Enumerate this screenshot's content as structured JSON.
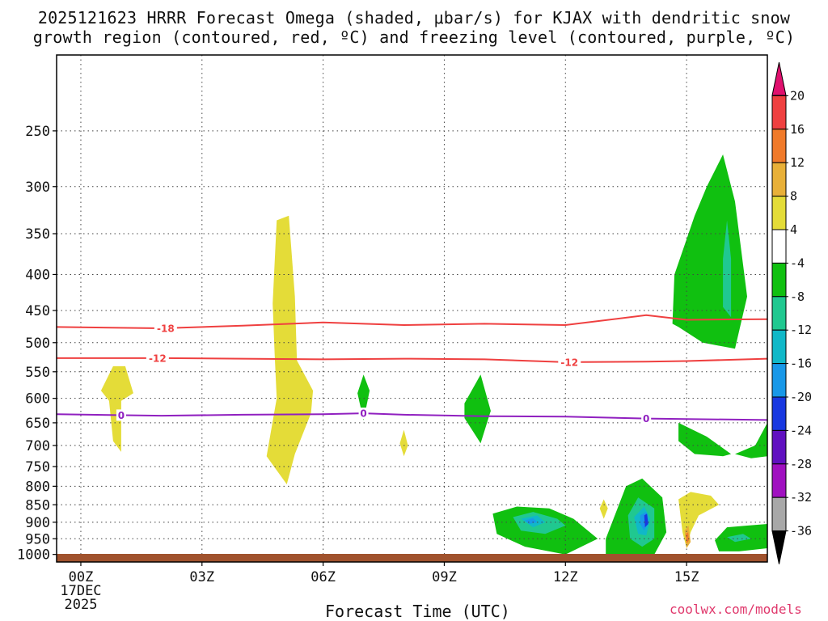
{
  "title": {
    "line1": "2025121623 HRRR Forecast Omega (shaded, μbar/s) for KJAX with dendritic snow",
    "line2": "growth region (contoured, red, ºC) and freezing level (contoured, purple, ºC)"
  },
  "credit": "coolwx.com/models",
  "chart_data": {
    "type": "heatmap",
    "xlabel": "Forecast Time (UTC)",
    "ylabel": "",
    "x_range_hours": [
      -0.6,
      17
    ],
    "y_range_hpa": [
      1025,
      195
    ],
    "y_scale": "log",
    "x_ticks": [
      {
        "hour": 0,
        "label": "00Z",
        "sublabels": [
          "17DEC",
          "2025"
        ]
      },
      {
        "hour": 3,
        "label": "03Z"
      },
      {
        "hour": 6,
        "label": "06Z"
      },
      {
        "hour": 9,
        "label": "09Z"
      },
      {
        "hour": 12,
        "label": "12Z"
      },
      {
        "hour": 15,
        "label": "15Z"
      }
    ],
    "y_ticks": [
      250,
      300,
      350,
      400,
      450,
      500,
      550,
      600,
      650,
      700,
      750,
      800,
      850,
      900,
      950,
      1000
    ],
    "grid": true,
    "colorbar": {
      "labels": [
        "20",
        "16",
        "12",
        "8",
        "4",
        "-4",
        "-8",
        "-12",
        "-16",
        "-20",
        "-24",
        "-28",
        "-32",
        "-36"
      ],
      "colors": [
        "#e0106e",
        "#ef4040",
        "#f07a2a",
        "#e8b038",
        "#e4dc38",
        "#ffffff",
        "#10c010",
        "#20c890",
        "#10b8c8",
        "#1898e8",
        "#1838e0",
        "#6010c0",
        "#a010c0",
        "#a8a8a8",
        "#000000"
      ]
    },
    "contours": [
      {
        "name": "-18",
        "color": "#ef4040",
        "points": [
          [
            -0.6,
            475
          ],
          [
            2,
            477
          ],
          [
            4,
            473
          ],
          [
            6,
            468
          ],
          [
            8,
            472
          ],
          [
            10,
            470
          ],
          [
            12,
            472
          ],
          [
            14,
            457
          ],
          [
            15,
            464
          ],
          [
            17,
            463
          ]
        ],
        "labels": [
          {
            "text": "-18",
            "x": 2.1
          }
        ]
      },
      {
        "name": "-12",
        "color": "#ef4040",
        "points": [
          [
            -0.6,
            526
          ],
          [
            2,
            526
          ],
          [
            4,
            527
          ],
          [
            6,
            528
          ],
          [
            8,
            527
          ],
          [
            10,
            528
          ],
          [
            12,
            533
          ],
          [
            14,
            532
          ],
          [
            15,
            531
          ],
          [
            17,
            527
          ]
        ],
        "labels": [
          {
            "text": "-12",
            "x": 1.9
          },
          {
            "text": "-12",
            "x": 12.1
          }
        ]
      },
      {
        "name": "0",
        "color": "#9020c0",
        "points": [
          [
            -0.6,
            632
          ],
          [
            2,
            635
          ],
          [
            4,
            633
          ],
          [
            6,
            632
          ],
          [
            7,
            630
          ],
          [
            8,
            633
          ],
          [
            10,
            636
          ],
          [
            12,
            637
          ],
          [
            14,
            641
          ],
          [
            17,
            644
          ]
        ],
        "labels": [
          {
            "text": "0",
            "x": 1.0
          },
          {
            "text": "0",
            "x": 7.0
          },
          {
            "text": "0",
            "x": 14.0
          }
        ]
      }
    ],
    "omega_regions": [
      {
        "value": 4,
        "color": "#e4dc38",
        "points": [
          [
            0.5,
            585
          ],
          [
            0.8,
            540
          ],
          [
            1.1,
            540
          ],
          [
            1.3,
            590
          ],
          [
            1.0,
            605
          ],
          [
            1.0,
            715
          ],
          [
            0.8,
            690
          ],
          [
            0.7,
            605
          ]
        ]
      },
      {
        "value": 4,
        "color": "#e4dc38",
        "points": [
          [
            4.75,
            440
          ],
          [
            4.85,
            335
          ],
          [
            5.15,
            330
          ],
          [
            5.3,
            430
          ],
          [
            5.35,
            530
          ],
          [
            5.75,
            585
          ],
          [
            5.7,
            630
          ],
          [
            5.3,
            720
          ],
          [
            5.1,
            795
          ],
          [
            4.6,
            725
          ],
          [
            4.85,
            600
          ],
          [
            4.8,
            520
          ]
        ]
      },
      {
        "value": -4,
        "color": "#10c010",
        "points": [
          [
            6.85,
            590
          ],
          [
            7.0,
            555
          ],
          [
            7.15,
            585
          ],
          [
            7.0,
            645
          ]
        ]
      },
      {
        "value": 4,
        "color": "#e4dc38",
        "points": [
          [
            7.9,
            695
          ],
          [
            8.0,
            665
          ],
          [
            8.1,
            700
          ],
          [
            8.0,
            725
          ]
        ]
      },
      {
        "value": -4,
        "color": "#10c010",
        "points": [
          [
            9.5,
            610
          ],
          [
            9.9,
            555
          ],
          [
            10.15,
            625
          ],
          [
            9.9,
            695
          ],
          [
            9.5,
            640
          ]
        ]
      },
      {
        "value": -4,
        "color": "#10c010",
        "points": [
          [
            10.2,
            875
          ],
          [
            10.8,
            855
          ],
          [
            11.6,
            860
          ],
          [
            12.2,
            890
          ],
          [
            12.8,
            950
          ],
          [
            12.0,
            1000
          ],
          [
            11.0,
            975
          ],
          [
            10.3,
            935
          ]
        ]
      },
      {
        "value": -8,
        "color": "#20c890",
        "points": [
          [
            10.7,
            885
          ],
          [
            11.2,
            870
          ],
          [
            11.8,
            890
          ],
          [
            12.0,
            910
          ],
          [
            11.5,
            935
          ],
          [
            10.9,
            925
          ]
        ]
      },
      {
        "value": -12,
        "color": "#10b8c8",
        "points": [
          [
            10.9,
            890
          ],
          [
            11.3,
            880
          ],
          [
            11.5,
            900
          ],
          [
            11.2,
            915
          ]
        ]
      },
      {
        "value": -16,
        "color": "#1898e8",
        "points": [
          [
            11.0,
            895
          ],
          [
            11.2,
            888
          ],
          [
            11.3,
            900
          ],
          [
            11.1,
            905
          ]
        ]
      },
      {
        "value": 4,
        "color": "#e4dc38",
        "points": [
          [
            12.85,
            860
          ],
          [
            12.95,
            835
          ],
          [
            13.05,
            860
          ],
          [
            12.95,
            890
          ]
        ]
      },
      {
        "value": -4,
        "color": "#10c010",
        "points": [
          [
            13.0,
            950
          ],
          [
            13.5,
            800
          ],
          [
            13.9,
            780
          ],
          [
            14.4,
            830
          ],
          [
            14.5,
            930
          ],
          [
            14.2,
            1000
          ],
          [
            13.0,
            1000
          ]
        ]
      },
      {
        "value": -8,
        "color": "#20c890",
        "points": [
          [
            13.55,
            880
          ],
          [
            13.8,
            830
          ],
          [
            14.2,
            860
          ],
          [
            14.2,
            950
          ],
          [
            13.9,
            975
          ],
          [
            13.6,
            950
          ]
        ]
      },
      {
        "value": -12,
        "color": "#10b8c8",
        "points": [
          [
            13.7,
            885
          ],
          [
            13.95,
            855
          ],
          [
            14.1,
            890
          ],
          [
            14.0,
            940
          ],
          [
            13.8,
            935
          ]
        ]
      },
      {
        "value": -16,
        "color": "#1898e8",
        "points": [
          [
            13.85,
            880
          ],
          [
            14.0,
            870
          ],
          [
            14.05,
            900
          ],
          [
            13.95,
            925
          ],
          [
            13.85,
            905
          ]
        ]
      },
      {
        "value": -20,
        "color": "#1838e0",
        "points": [
          [
            13.95,
            880
          ],
          [
            14.02,
            875
          ],
          [
            14.05,
            905
          ],
          [
            13.97,
            915
          ]
        ]
      },
      {
        "value": 4,
        "color": "#e4dc38",
        "points": [
          [
            14.8,
            835
          ],
          [
            15.1,
            815
          ],
          [
            15.6,
            825
          ],
          [
            15.8,
            850
          ],
          [
            15.3,
            880
          ],
          [
            15.1,
            930
          ],
          [
            15.0,
            980
          ],
          [
            14.9,
            930
          ]
        ]
      },
      {
        "value": 8,
        "color": "#e8b038",
        "points": [
          [
            14.95,
            925
          ],
          [
            15.05,
            910
          ],
          [
            15.1,
            960
          ],
          [
            15.0,
            980
          ]
        ]
      },
      {
        "value": 12,
        "color": "#f07a2a",
        "points": [
          [
            14.98,
            935
          ],
          [
            15.04,
            930
          ],
          [
            15.06,
            955
          ],
          [
            15.0,
            965
          ]
        ]
      },
      {
        "value": -4,
        "color": "#10c010",
        "points": [
          [
            14.65,
            470
          ],
          [
            14.7,
            400
          ],
          [
            15.2,
            330
          ],
          [
            15.5,
            300
          ],
          [
            15.9,
            270
          ],
          [
            16.2,
            315
          ],
          [
            16.5,
            430
          ],
          [
            16.2,
            510
          ],
          [
            15.4,
            500
          ],
          [
            14.8,
            475
          ]
        ]
      },
      {
        "value": -8,
        "color": "#20c890",
        "points": [
          [
            15.9,
            380
          ],
          [
            16.0,
            335
          ],
          [
            16.1,
            380
          ],
          [
            16.1,
            460
          ],
          [
            15.9,
            445
          ]
        ]
      },
      {
        "value": -4,
        "color": "#10c010",
        "points": [
          [
            14.8,
            650
          ],
          [
            15.5,
            680
          ],
          [
            16.1,
            720
          ],
          [
            15.9,
            725
          ],
          [
            15.2,
            720
          ],
          [
            14.8,
            690
          ]
        ]
      },
      {
        "value": -4,
        "color": "#10c010",
        "points": [
          [
            16.2,
            720
          ],
          [
            16.7,
            700
          ],
          [
            17.0,
            650
          ],
          [
            17.0,
            725
          ],
          [
            16.6,
            730
          ]
        ]
      },
      {
        "value": -4,
        "color": "#10c010",
        "points": [
          [
            15.7,
            955
          ],
          [
            16.0,
            915
          ],
          [
            16.5,
            910
          ],
          [
            17.0,
            905
          ],
          [
            17.0,
            980
          ],
          [
            16.3,
            990
          ],
          [
            15.8,
            990
          ]
        ]
      },
      {
        "value": -8,
        "color": "#20c890",
        "points": [
          [
            16.0,
            945
          ],
          [
            16.4,
            935
          ],
          [
            16.6,
            950
          ],
          [
            16.2,
            960
          ]
        ]
      }
    ]
  }
}
